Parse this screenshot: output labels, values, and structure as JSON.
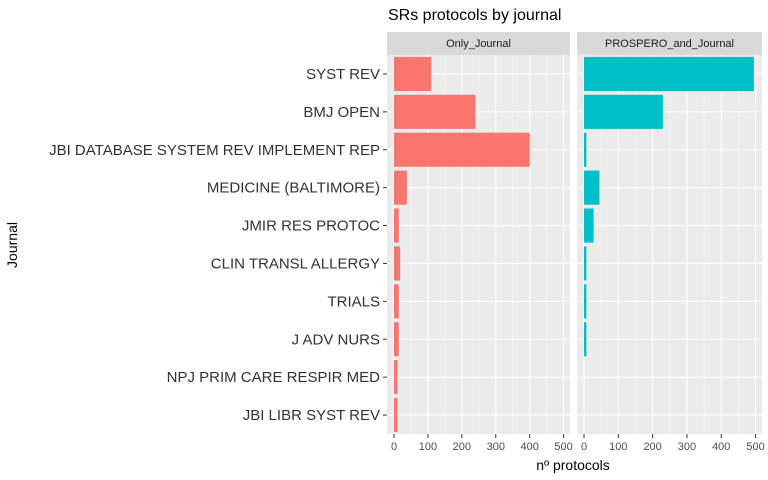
{
  "chart_data": {
    "type": "bar",
    "orientation": "horizontal",
    "title": "SRs protocols by journal",
    "xlabel": "nº protocols",
    "ylabel": "Journal",
    "xlim": [
      0,
      510
    ],
    "xticks": [
      0,
      100,
      200,
      300,
      400,
      500
    ],
    "grid": true,
    "categories": [
      "SYST REV",
      "BMJ OPEN",
      "JBI DATABASE SYSTEM REV IMPLEMENT REP",
      "MEDICINE (BALTIMORE)",
      "JMIR RES PROTOC",
      "CLIN TRANSL ALLERGY",
      "TRIALS",
      "J ADV NURS",
      "NPJ PRIM CARE RESPIR MED",
      "JBI LIBR SYST REV"
    ],
    "facets": [
      {
        "name": "Only_Journal",
        "color": "#F8766D",
        "values": [
          110,
          240,
          400,
          38,
          14,
          18,
          14,
          14,
          10,
          10
        ]
      },
      {
        "name": "PROSPERO_and_Journal",
        "color": "#00BFC4",
        "values": [
          495,
          230,
          7,
          45,
          28,
          7,
          7,
          7,
          0,
          0
        ]
      }
    ]
  }
}
